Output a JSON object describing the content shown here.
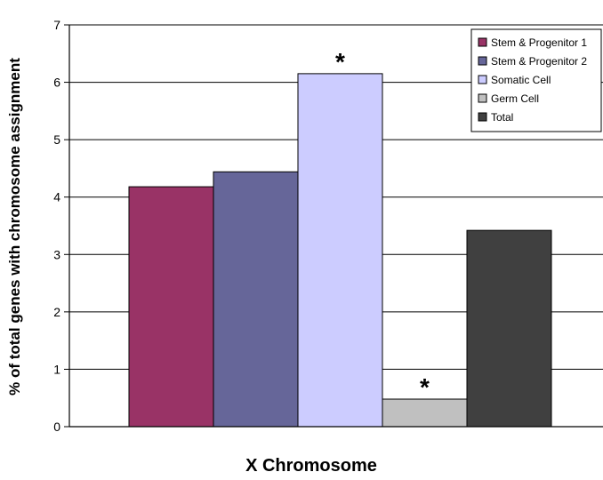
{
  "chart_data": {
    "type": "bar",
    "title": "",
    "xlabel": "X Chromosome",
    "ylabel": "% of total genes with chromosome assignment",
    "ylim": [
      0,
      7
    ],
    "yticks": [
      0,
      1,
      2,
      3,
      4,
      5,
      6,
      7
    ],
    "grid": true,
    "legend_position": "top-right",
    "series": [
      {
        "name": "Stem & Progenitor 1",
        "value": 4.18,
        "color": "#993366"
      },
      {
        "name": "Stem & Progenitor 2",
        "value": 4.44,
        "color": "#666699"
      },
      {
        "name": "Somatic Cell",
        "value": 6.15,
        "color": "#CCCCFF",
        "annotation": "*"
      },
      {
        "name": "Germ Cell",
        "value": 0.48,
        "color": "#C0C0C0",
        "annotation": "*"
      },
      {
        "name": "Total",
        "value": 3.42,
        "color": "#404040"
      }
    ]
  }
}
